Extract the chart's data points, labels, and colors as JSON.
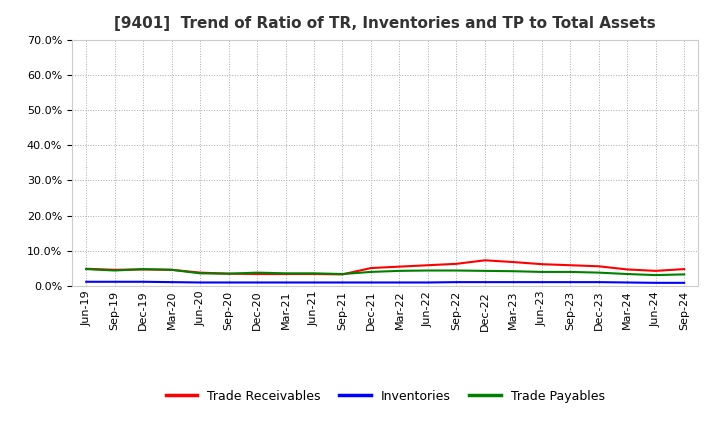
{
  "title": "[9401]  Trend of Ratio of TR, Inventories and TP to Total Assets",
  "x_labels": [
    "Jun-19",
    "Sep-19",
    "Dec-19",
    "Mar-20",
    "Jun-20",
    "Sep-20",
    "Dec-20",
    "Mar-21",
    "Jun-21",
    "Sep-21",
    "Dec-21",
    "Mar-22",
    "Jun-22",
    "Sep-22",
    "Dec-22",
    "Mar-23",
    "Jun-23",
    "Sep-23",
    "Dec-23",
    "Mar-24",
    "Jun-24",
    "Sep-24"
  ],
  "trade_receivables": [
    0.049,
    0.046,
    0.047,
    0.046,
    0.038,
    0.035,
    0.034,
    0.034,
    0.034,
    0.033,
    0.051,
    0.055,
    0.059,
    0.063,
    0.073,
    0.068,
    0.062,
    0.059,
    0.056,
    0.047,
    0.043,
    0.048
  ],
  "inventories": [
    0.012,
    0.012,
    0.012,
    0.011,
    0.01,
    0.01,
    0.01,
    0.01,
    0.01,
    0.01,
    0.01,
    0.01,
    0.01,
    0.011,
    0.011,
    0.011,
    0.011,
    0.011,
    0.011,
    0.01,
    0.009,
    0.009
  ],
  "trade_payables": [
    0.048,
    0.044,
    0.048,
    0.046,
    0.036,
    0.035,
    0.038,
    0.036,
    0.036,
    0.034,
    0.04,
    0.043,
    0.044,
    0.044,
    0.043,
    0.042,
    0.04,
    0.04,
    0.038,
    0.034,
    0.031,
    0.033
  ],
  "tr_color": "#ff0000",
  "inv_color": "#0000ff",
  "tp_color": "#008000",
  "ylim": [
    0.0,
    0.7
  ],
  "yticks": [
    0.0,
    0.1,
    0.2,
    0.3,
    0.4,
    0.5,
    0.6,
    0.7
  ],
  "bg_color": "#ffffff",
  "plot_bg_color": "#ffffff",
  "grid_color": "#aaaaaa",
  "legend_labels": [
    "Trade Receivables",
    "Inventories",
    "Trade Payables"
  ],
  "title_fontsize": 11,
  "tick_fontsize": 8,
  "legend_fontsize": 9
}
